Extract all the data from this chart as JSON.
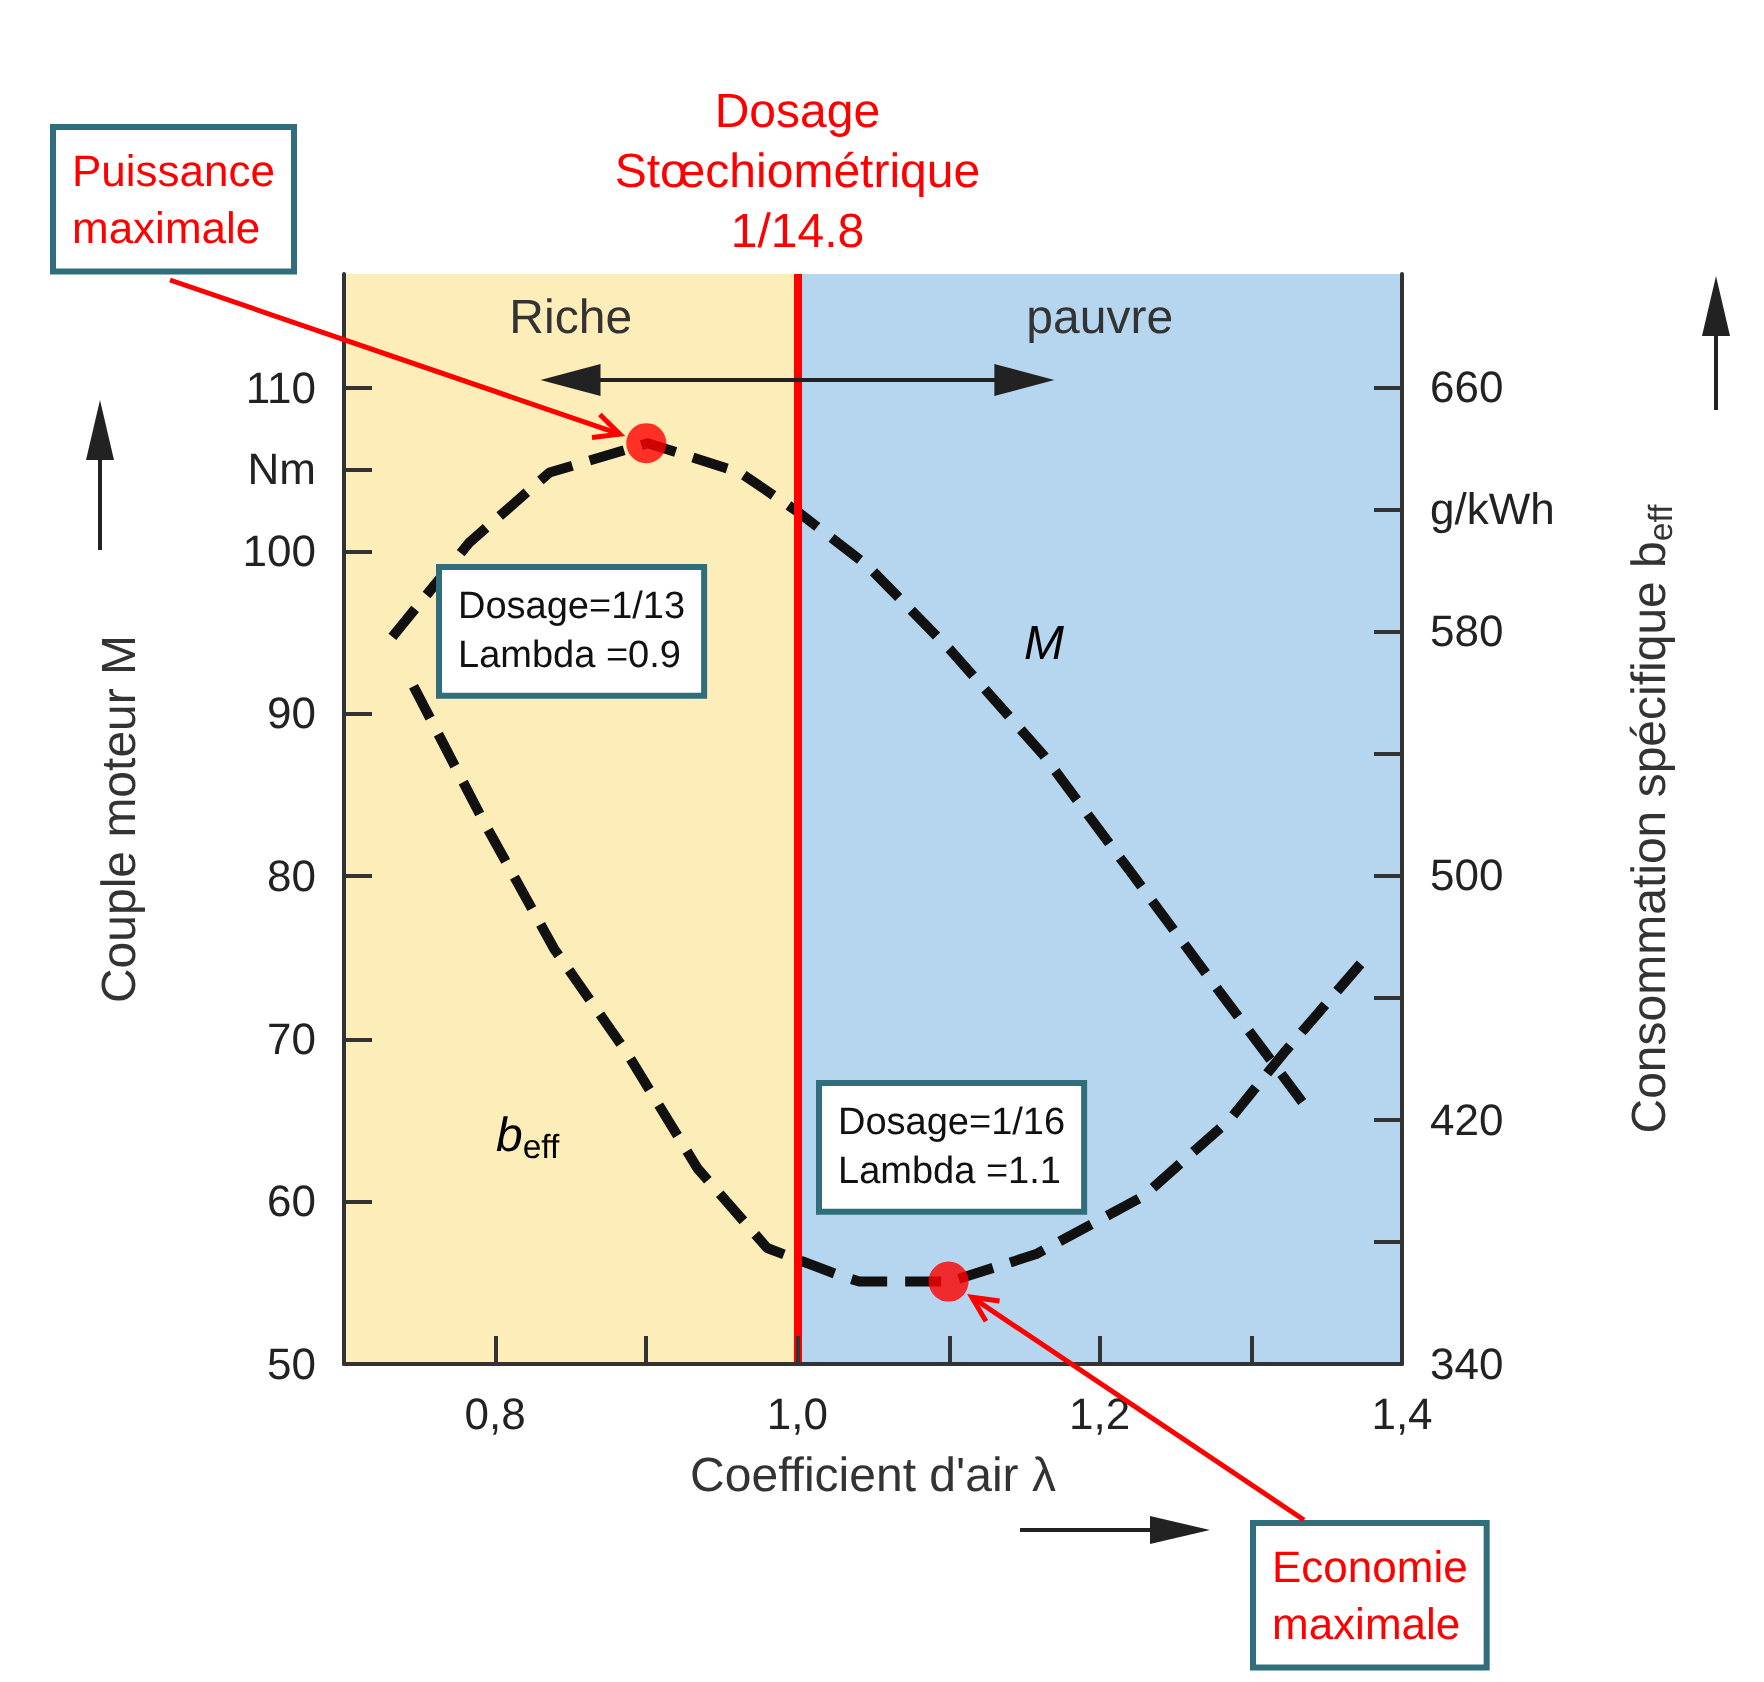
{
  "chart_data": {
    "type": "line",
    "xlabel": "Coefficient d'air λ",
    "ylabel": "Couple moteur M",
    "y2label": "Consommation spécifique b$_{eff}$",
    "xlim": [
      0.7,
      1.4
    ],
    "xticks": [
      {
        "value": 0.8,
        "label": "0,8"
      },
      {
        "value": 0.9,
        "label": null
      },
      {
        "value": 1.0,
        "label": "1,0"
      },
      {
        "value": 1.1,
        "label": null
      },
      {
        "value": 1.2,
        "label": "1,2"
      },
      {
        "value": 1.3,
        "label": null
      },
      {
        "value": 1.4,
        "label": "1,4"
      }
    ],
    "ylim": [
      50,
      117
    ],
    "yticks": [
      50,
      60,
      70,
      80,
      90,
      100,
      {
        "value": 105,
        "label": "Nm"
      },
      110
    ],
    "y2lim": [
      340,
      697
    ],
    "y2ticks": [
      340,
      {
        "value": 380,
        "label": null
      },
      420,
      {
        "value": 460,
        "label": null
      },
      500,
      {
        "value": 540,
        "label": null
      },
      580,
      {
        "value": 620,
        "label": "g/kWh"
      },
      660
    ],
    "series": [
      {
        "name": "M",
        "color": "#111111",
        "x": [
          0.732,
          0.783,
          0.836,
          0.901,
          0.962,
          1.0,
          1.046,
          1.101,
          1.163,
          1.22,
          1.276,
          1.334
        ],
        "values": [
          94.7,
          100.5,
          104.8,
          106.6,
          104.8,
          102.4,
          99.1,
          93.9,
          87.4,
          80.3,
          73.3,
          66.1
        ]
      },
      {
        "name": "b$_{eff}$",
        "color": "#111111",
        "axis": "y2",
        "x": [
          0.746,
          0.792,
          0.839,
          0.887,
          0.934,
          0.98,
          1.028,
          1.041,
          1.101,
          1.158,
          1.229,
          1.286,
          1.322,
          1.376
        ],
        "values": [
          562,
          518,
          476,
          442,
          404,
          378,
          369,
          367,
          367,
          376,
          395,
          420,
          442,
          473
        ]
      },
      {
        "type": "scatter",
        "marker": "circle",
        "color": "#ff0000",
        "x": [
          0.9
        ],
        "values": [
          106.6
        ]
      },
      {
        "type": "scatter",
        "marker": "circle",
        "color": "#ff0000",
        "axis": "y2",
        "x": [
          1.1
        ],
        "values": [
          367
        ]
      }
    ],
    "marker": "none",
    "line_style": "dashed",
    "grid": false,
    "legend": false,
    "ref_lines": [
      {
        "axis": "x",
        "value": 1.0,
        "label": "Dosage\nStœchiométrique\n1/14.8",
        "color": "#ff0000"
      }
    ],
    "bands": [
      {
        "axis": "x",
        "from": 0.7,
        "to": 1.0,
        "label": "Riche",
        "color": "#fdedb8"
      },
      {
        "axis": "x",
        "from": 1.0,
        "to": 1.4,
        "label": "pauvre",
        "color": "#b5d6ee"
      }
    ],
    "annotations": [
      "Puissance\nmaximale",
      "Dosage=1/13\nLambda =0.9",
      "Dosage=1/16\nLambda =1.1",
      "Economie\nmaximale"
    ]
  }
}
